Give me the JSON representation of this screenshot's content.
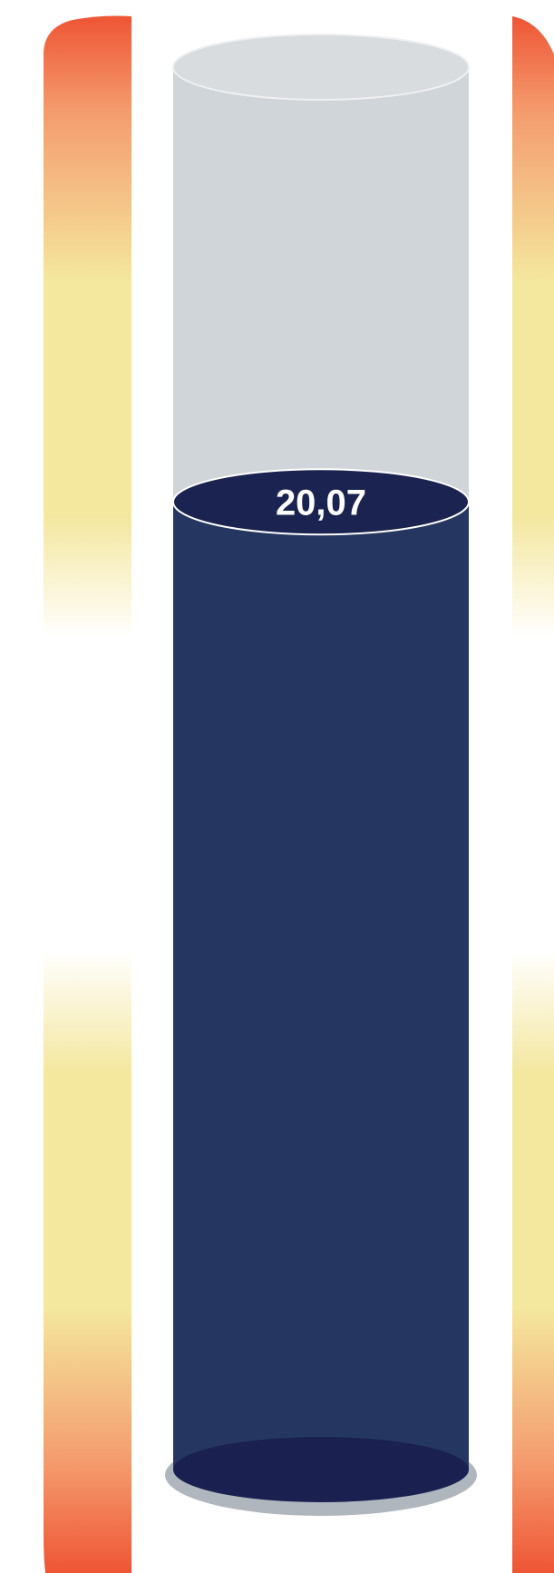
{
  "chart_data": {
    "type": "gauge",
    "value": 20.07,
    "value_label": "20,07",
    "fill_fraction": 0.69,
    "colors": {
      "liquid_body": "#253760",
      "liquid_top": "#1b2350",
      "liquid_bottom": "#1a2150",
      "empty_tube": "#d0d5d9",
      "empty_tube_top": "#d9dcdf",
      "base_shadow": "#b0b6be",
      "band_hot": "#ee5535",
      "band_warm": "#f49a6c",
      "band_mild": "#f4e79e",
      "band_neutral": "#ffffff"
    }
  }
}
